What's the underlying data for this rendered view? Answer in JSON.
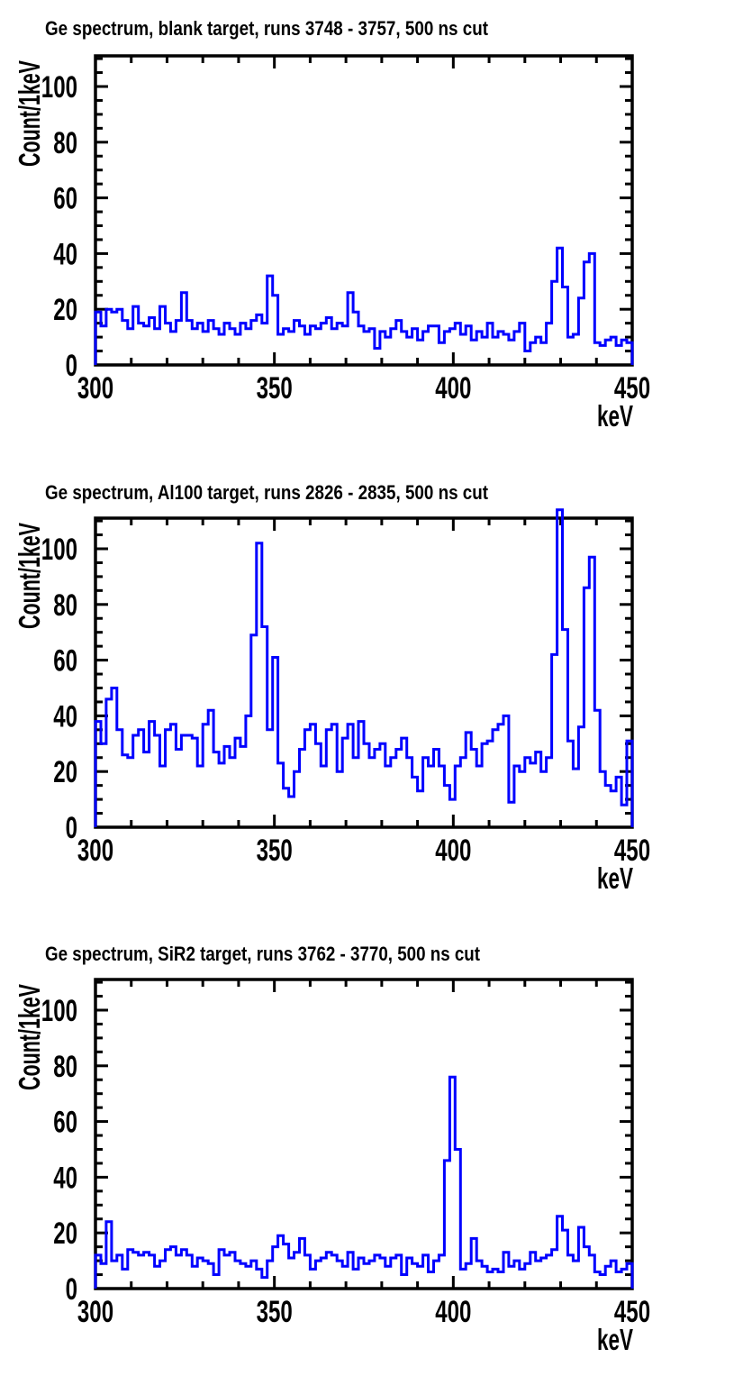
{
  "page": {
    "background": "#ffffff",
    "axis_color": "#000000",
    "histogram_color": "#0000ff"
  },
  "chart_data": [
    {
      "type": "histogram-step",
      "title": "Ge spectrum, blank target, runs 3748 - 3757, 500 ns cut",
      "xlabel": "keV",
      "ylabel": "Count/1keV",
      "x_start": 300,
      "bin_width": 1.5,
      "xlim": [
        300,
        450
      ],
      "ylim": [
        0,
        111
      ],
      "x_major_ticks": [
        300,
        350,
        400,
        450
      ],
      "x_minor_step": 10,
      "y_major_ticks": [
        0,
        20,
        40,
        60,
        80,
        100
      ],
      "y_minor_step": 5,
      "grid": false,
      "line_color": "#0000ff",
      "values": [
        19,
        14,
        20,
        19,
        20,
        16,
        13,
        21,
        15,
        14,
        17,
        13,
        21,
        15,
        12,
        16,
        26,
        16,
        13,
        15,
        12,
        16,
        13,
        11,
        15,
        13,
        11,
        15,
        13,
        16,
        18,
        15,
        32,
        25,
        11,
        13,
        12,
        16,
        14,
        11,
        14,
        13,
        15,
        17,
        13,
        15,
        14,
        26,
        19,
        14,
        12,
        13,
        6,
        12,
        10,
        13,
        16,
        12,
        10,
        13,
        9,
        12,
        14,
        14,
        8,
        12,
        13,
        15,
        11,
        14,
        9,
        12,
        10,
        15,
        10,
        12,
        11,
        9,
        12,
        15,
        5,
        8,
        10,
        8,
        15,
        30,
        42,
        28,
        10,
        11,
        24,
        37,
        40,
        8,
        7,
        9,
        10,
        7,
        9,
        8
      ]
    },
    {
      "type": "histogram-step",
      "title": "Ge spectrum, Al100 target, runs 2826 - 2835, 500 ns cut",
      "xlabel": "keV",
      "ylabel": "Count/1keV",
      "x_start": 300,
      "bin_width": 1.5,
      "xlim": [
        300,
        450
      ],
      "ylim": [
        0,
        111
      ],
      "x_major_ticks": [
        300,
        350,
        400,
        450
      ],
      "x_minor_step": 10,
      "y_major_ticks": [
        0,
        20,
        40,
        60,
        80,
        100
      ],
      "y_minor_step": 5,
      "grid": false,
      "line_color": "#0000ff",
      "values": [
        38,
        30,
        46,
        50,
        35,
        26,
        25,
        33,
        35,
        27,
        38,
        33,
        22,
        35,
        37,
        28,
        33,
        33,
        32,
        22,
        37,
        42,
        27,
        23,
        29,
        25,
        32,
        29,
        40,
        69,
        102,
        72,
        35,
        61,
        23,
        14,
        11,
        20,
        28,
        35,
        37,
        30,
        22,
        35,
        37,
        20,
        32,
        37,
        25,
        38,
        30,
        25,
        28,
        30,
        22,
        25,
        28,
        32,
        25,
        18,
        13,
        25,
        22,
        28,
        22,
        15,
        10,
        22,
        25,
        34,
        28,
        22,
        30,
        31,
        35,
        37,
        40,
        9,
        22,
        20,
        25,
        23,
        27,
        20,
        25,
        62,
        114,
        71,
        31,
        21,
        36,
        86,
        97,
        42,
        20,
        15,
        13,
        18,
        8,
        31
      ]
    },
    {
      "type": "histogram-step",
      "title": "Ge spectrum, SiR2 target, runs 3762 - 3770, 500 ns cut",
      "xlabel": "keV",
      "ylabel": "Count/1keV",
      "x_start": 300,
      "bin_width": 1.5,
      "xlim": [
        300,
        450
      ],
      "ylim": [
        0,
        111
      ],
      "x_major_ticks": [
        300,
        350,
        400,
        450
      ],
      "x_minor_step": 10,
      "y_major_ticks": [
        0,
        20,
        40,
        60,
        80,
        100
      ],
      "y_minor_step": 5,
      "grid": false,
      "line_color": "#0000ff",
      "values": [
        12,
        9,
        24,
        10,
        12,
        7,
        14,
        13,
        12,
        13,
        12,
        8,
        10,
        14,
        15,
        12,
        14,
        12,
        8,
        11,
        10,
        9,
        5,
        14,
        12,
        13,
        10,
        9,
        8,
        10,
        7,
        4,
        10,
        15,
        19,
        16,
        11,
        13,
        18,
        12,
        7,
        10,
        11,
        13,
        12,
        10,
        8,
        13,
        7,
        11,
        9,
        10,
        12,
        11,
        8,
        11,
        12,
        5,
        11,
        9,
        8,
        12,
        6,
        10,
        12,
        46,
        76,
        50,
        7,
        9,
        18,
        10,
        8,
        6,
        7,
        6,
        13,
        8,
        10,
        7,
        9,
        13,
        10,
        11,
        12,
        14,
        26,
        21,
        12,
        10,
        22,
        15,
        12,
        6,
        5,
        8,
        10,
        6,
        7,
        9
      ]
    }
  ]
}
